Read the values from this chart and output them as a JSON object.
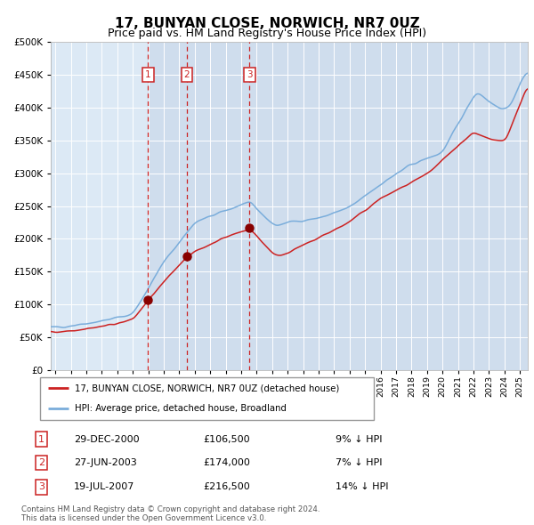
{
  "title": "17, BUNYAN CLOSE, NORWICH, NR7 0UZ",
  "subtitle": "Price paid vs. HM Land Registry's House Price Index (HPI)",
  "ylim": [
    0,
    500000
  ],
  "yticks": [
    0,
    50000,
    100000,
    150000,
    200000,
    250000,
    300000,
    350000,
    400000,
    450000,
    500000
  ],
  "ytick_labels": [
    "£0",
    "£50K",
    "£100K",
    "£150K",
    "£200K",
    "£250K",
    "£300K",
    "£350K",
    "£400K",
    "£450K",
    "£500K"
  ],
  "xlim_start": 1994.7,
  "xlim_end": 2025.5,
  "xticks": [
    1995,
    1996,
    1997,
    1998,
    1999,
    2000,
    2001,
    2002,
    2003,
    2004,
    2005,
    2006,
    2007,
    2008,
    2009,
    2010,
    2011,
    2012,
    2013,
    2014,
    2015,
    2016,
    2017,
    2018,
    2019,
    2020,
    2021,
    2022,
    2023,
    2024,
    2025
  ],
  "background_plot": "#dce9f5",
  "grid_color": "#ffffff",
  "hpi_line_color": "#7aaddb",
  "price_line_color": "#cc2222",
  "sale_marker_color": "#880000",
  "vline_color": "#cc2222",
  "title_fontsize": 11,
  "subtitle_fontsize": 9,
  "legend_label_red": "17, BUNYAN CLOSE, NORWICH, NR7 0UZ (detached house)",
  "legend_label_blue": "HPI: Average price, detached house, Broadland",
  "sale1_date": 2000.99,
  "sale1_price": 106500,
  "sale2_date": 2003.49,
  "sale2_price": 174000,
  "sale3_date": 2007.54,
  "sale3_price": 216500,
  "highlight_start": 2000.99,
  "highlight_end": 2025.5,
  "table_rows": [
    {
      "num": "1",
      "date": "29-DEC-2000",
      "price": "£106,500",
      "hpi": "9% ↓ HPI"
    },
    {
      "num": "2",
      "date": "27-JUN-2003",
      "price": "£174,000",
      "hpi": "7% ↓ HPI"
    },
    {
      "num": "3",
      "date": "19-JUL-2007",
      "price": "£216,500",
      "hpi": "14% ↓ HPI"
    }
  ],
  "footer": "Contains HM Land Registry data © Crown copyright and database right 2024.\nThis data is licensed under the Open Government Licence v3.0."
}
